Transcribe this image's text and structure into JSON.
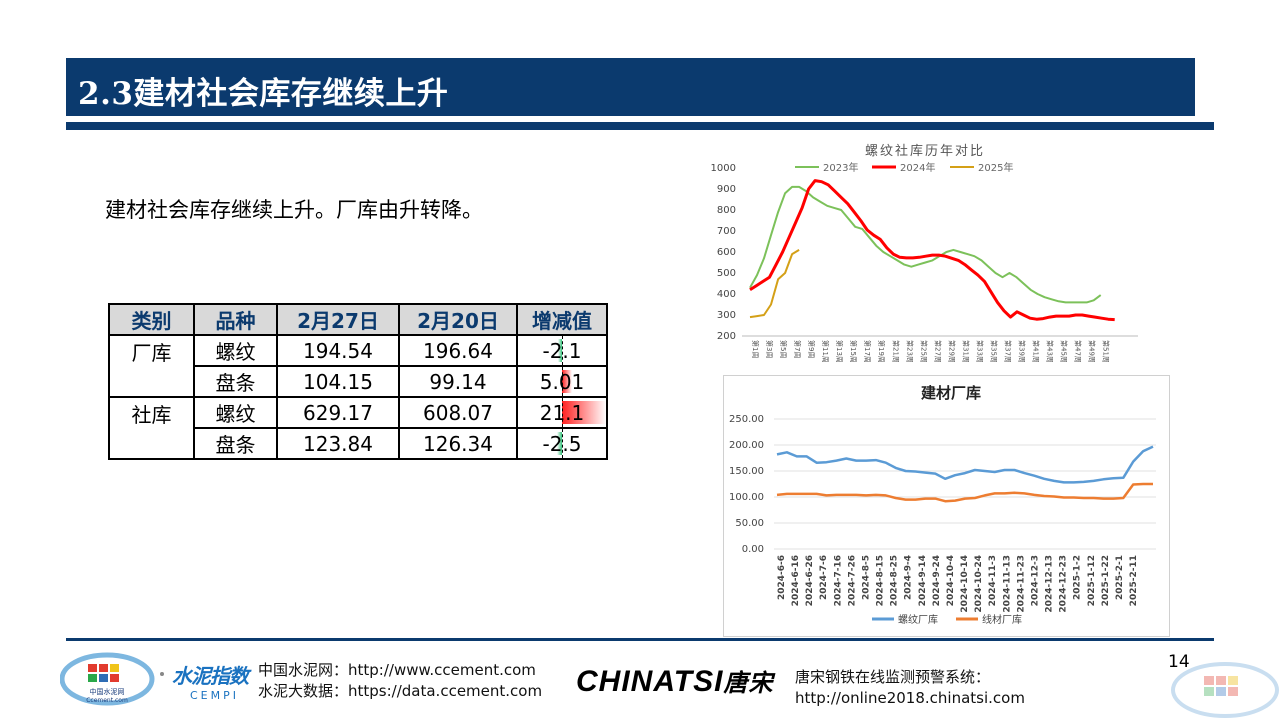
{
  "title": "2.3建材社会库存继续上升",
  "subtitle": "建材社会库存继续上升。厂库由升转降。",
  "table": {
    "headers": [
      "类别",
      "品种",
      "2月27日",
      "2月20日",
      "增减值"
    ],
    "rows": [
      {
        "category": "厂库",
        "item": "螺纹",
        "d1": "194.54",
        "d2": "196.64",
        "change": "-2.1",
        "change_value": -2.1
      },
      {
        "category": "",
        "item": "盘条",
        "d1": "104.15",
        "d2": "99.14",
        "change": "5.01",
        "change_value": 5.01
      },
      {
        "category": "社库",
        "item": "螺纹",
        "d1": "629.17",
        "d2": "608.07",
        "change": "21.1",
        "change_value": 21.1
      },
      {
        "category": "",
        "item": "盘条",
        "d1": "123.84",
        "d2": "126.34",
        "change": "-2.5",
        "change_value": -2.5
      }
    ]
  },
  "chart_data": [
    {
      "type": "line",
      "title": "螺纹社库历年对比",
      "ylim": [
        200,
        1000
      ],
      "yticks": [
        "200",
        "300",
        "400",
        "500",
        "600",
        "700",
        "800",
        "900",
        "1000"
      ],
      "xticks": [
        "第1周",
        "第3周",
        "第5周",
        "第7周",
        "第9周",
        "第11周",
        "第13周",
        "第15周",
        "第17周",
        "第19周",
        "第21周",
        "第23周",
        "第25周",
        "第27周",
        "第29周",
        "第31周",
        "第33周",
        "第35周",
        "第37周",
        "第39周",
        "第41周",
        "第43周",
        "第45周",
        "第47周",
        "第49周",
        "第51周"
      ],
      "legend_position": "top",
      "series": [
        {
          "name": "2023年",
          "color": "#7cc15a",
          "values": [
            430,
            490,
            570,
            680,
            790,
            880,
            910,
            910,
            890,
            860,
            840,
            820,
            810,
            800,
            760,
            720,
            710,
            670,
            630,
            600,
            580,
            560,
            540,
            530,
            540,
            550,
            560,
            580,
            600,
            610,
            600,
            590,
            580,
            560,
            530,
            500,
            480,
            500,
            480,
            450,
            420,
            400,
            385,
            375,
            365,
            360,
            360,
            360,
            360,
            370,
            395
          ]
        },
        {
          "name": "2024年",
          "color": "#ff0000",
          "values": [
            420,
            440,
            460,
            480,
            540,
            600,
            670,
            740,
            810,
            900,
            940,
            935,
            920,
            890,
            860,
            830,
            790,
            750,
            705,
            680,
            660,
            620,
            590,
            575,
            572,
            572,
            575,
            580,
            585,
            585,
            580,
            570,
            560,
            540,
            515,
            490,
            460,
            410,
            360,
            320,
            290,
            315,
            300,
            285,
            280,
            283,
            290,
            295,
            295,
            295,
            300,
            300,
            295,
            290,
            285,
            280,
            278
          ]
        },
        {
          "name": "2025年",
          "color": "#d4a017",
          "values": [
            290,
            295,
            300,
            350,
            470,
            500,
            590,
            610
          ]
        }
      ]
    },
    {
      "type": "line",
      "title": "建材厂库",
      "ylim": [
        0,
        250
      ],
      "yticks": [
        "0.00",
        "50.00",
        "100.00",
        "150.00",
        "200.00",
        "250.00"
      ],
      "xticks": [
        "2024-6-6",
        "2024-6-16",
        "2024-6-26",
        "2024-7-6",
        "2024-7-16",
        "2024-7-26",
        "2024-8-5",
        "2024-8-15",
        "2024-8-25",
        "2024-9-4",
        "2024-9-14",
        "2024-9-24",
        "2024-10-4",
        "2024-10-14",
        "2024-10-24",
        "2024-11-3",
        "2024-11-13",
        "2024-11-23",
        "2024-12-3",
        "2024-12-13",
        "2024-12-23",
        "2025-1-2",
        "2025-1-12",
        "2025-1-22",
        "2025-2-1",
        "2025-2-11"
      ],
      "legend_position": "bottom",
      "series": [
        {
          "name": "螺纹厂库",
          "color": "#5b9bd5",
          "values": [
            182,
            186,
            178,
            178,
            166,
            167,
            170,
            174,
            170,
            170,
            171,
            166,
            156,
            150,
            149,
            147,
            145,
            135,
            142,
            146,
            152,
            150,
            148,
            152,
            152,
            146,
            141,
            135,
            131,
            128,
            128,
            129,
            131,
            134,
            136,
            137,
            168,
            188,
            197
          ]
        },
        {
          "name": "线材厂库",
          "color": "#ed7d31",
          "values": [
            104,
            106,
            106,
            106,
            106,
            103,
            104,
            104,
            104,
            103,
            104,
            103,
            98,
            95,
            95,
            97,
            97,
            92,
            93,
            97,
            98,
            103,
            107,
            107,
            108,
            107,
            104,
            102,
            101,
            99,
            99,
            98,
            98,
            97,
            97,
            98,
            124,
            125,
            125
          ]
        }
      ]
    }
  ],
  "footer": {
    "page_number": "14",
    "cement_line1": "中国水泥网：http://www.ccement.com",
    "cement_line2": "水泥大数据：https://data.ccement.com",
    "tangsong_line1": "唐宋钢铁在线监测预警系统：",
    "tangsong_line2": "http://online2018.chinatsi.com",
    "chinatsi_logo": "CHINATSI",
    "tangsong_logo": "唐宋",
    "cempi_logo_cn": "水泥指数",
    "cempi_logo_en": "CEMPI",
    "cement_logo_text": "中国水泥网",
    "cement_logo_en": "Ccement.com"
  }
}
